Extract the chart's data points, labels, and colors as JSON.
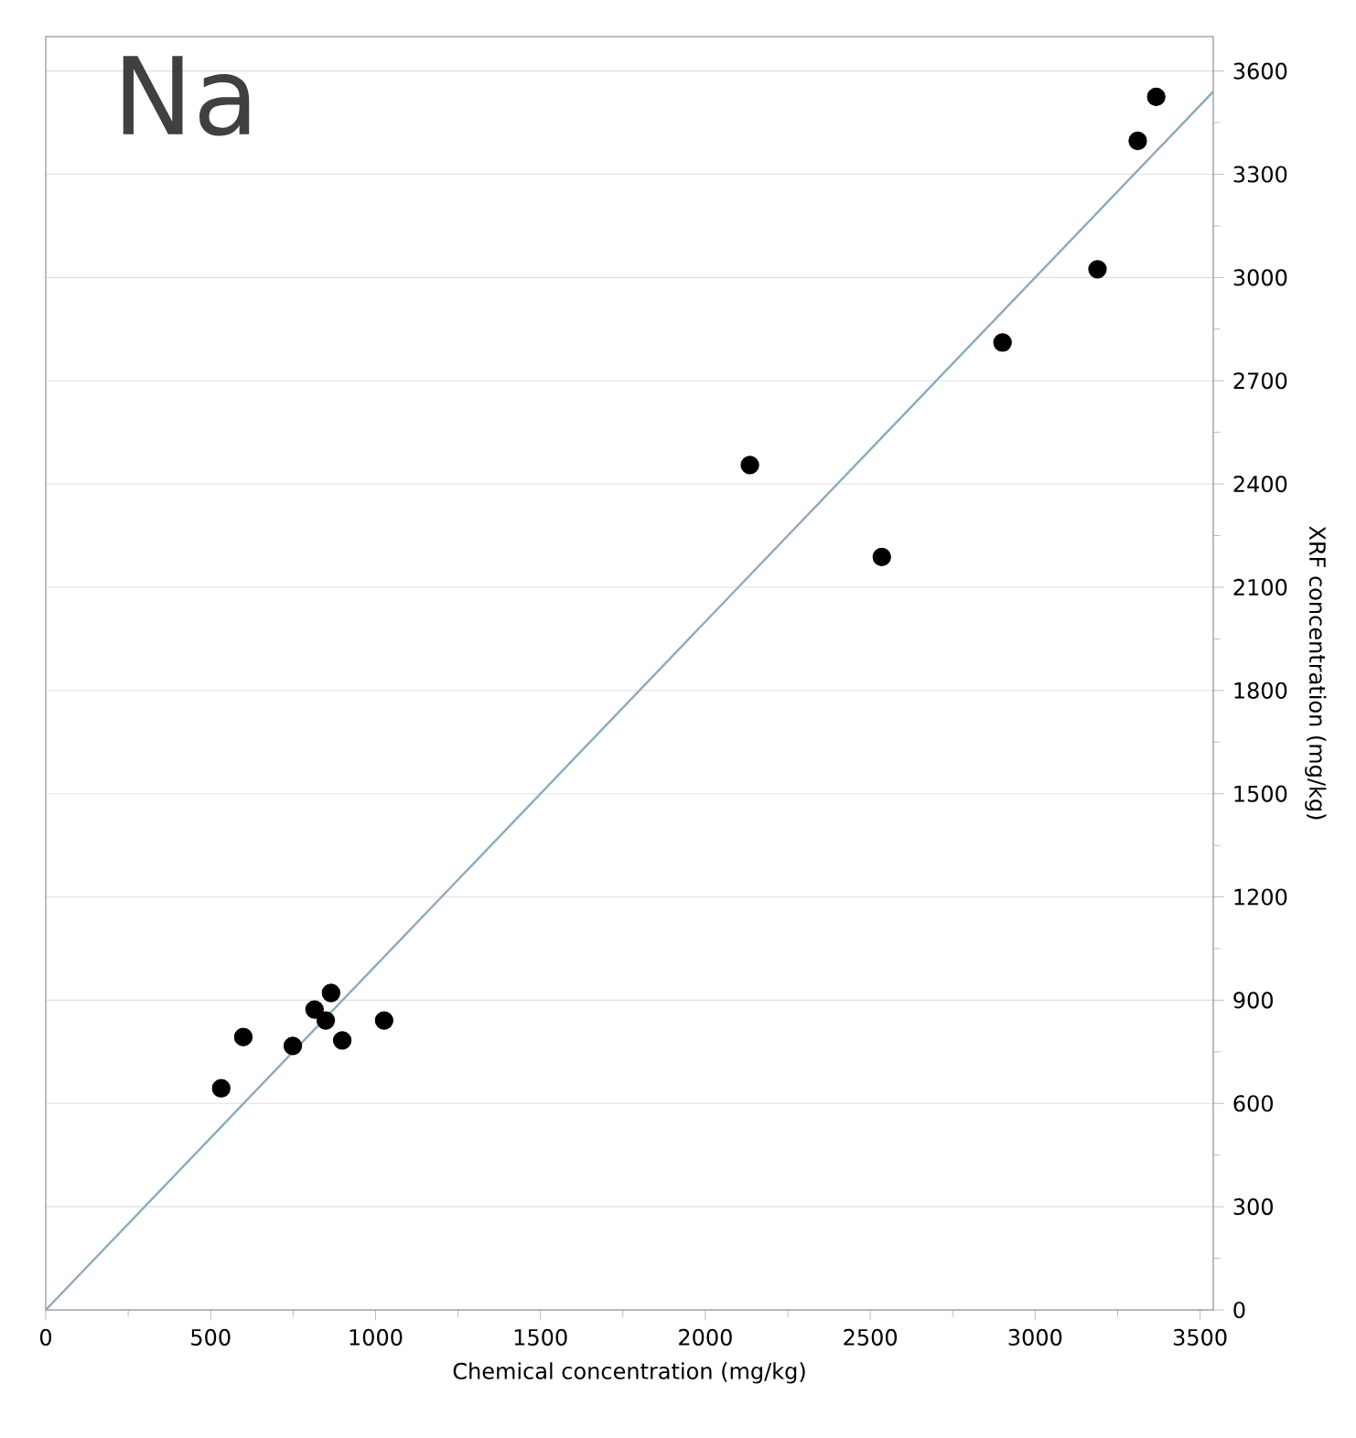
{
  "chart_data": {
    "type": "scatter",
    "title": "Na",
    "xlabel": "Chemical concentration (mg/kg)",
    "ylabel": "XRF concentration (mg/kg)",
    "xlim": [
      0,
      3540
    ],
    "ylim": [
      0,
      3700
    ],
    "xticks": [
      0,
      500,
      1000,
      1500,
      2000,
      2500,
      3000,
      3500
    ],
    "yticks": [
      0,
      300,
      600,
      900,
      1200,
      1500,
      1800,
      2100,
      2400,
      2700,
      3000,
      3300,
      3600
    ],
    "grid": "y",
    "series": [
      {
        "type": "scatter",
        "marker": "circle",
        "color": "#000000",
        "x": [
          532,
          599,
          749,
          815,
          849,
          865,
          899,
          1026,
          2135,
          2535,
          2901,
          3189,
          3311,
          3367
        ],
        "values": [
          644,
          793,
          767,
          873,
          841,
          921,
          783,
          841,
          2455,
          2188,
          2811,
          3024,
          3397,
          3525
        ]
      },
      {
        "type": "line",
        "marker": "none",
        "color": "#8aaabf",
        "x": [
          0,
          3540
        ],
        "values": [
          0,
          3540
        ]
      }
    ]
  }
}
